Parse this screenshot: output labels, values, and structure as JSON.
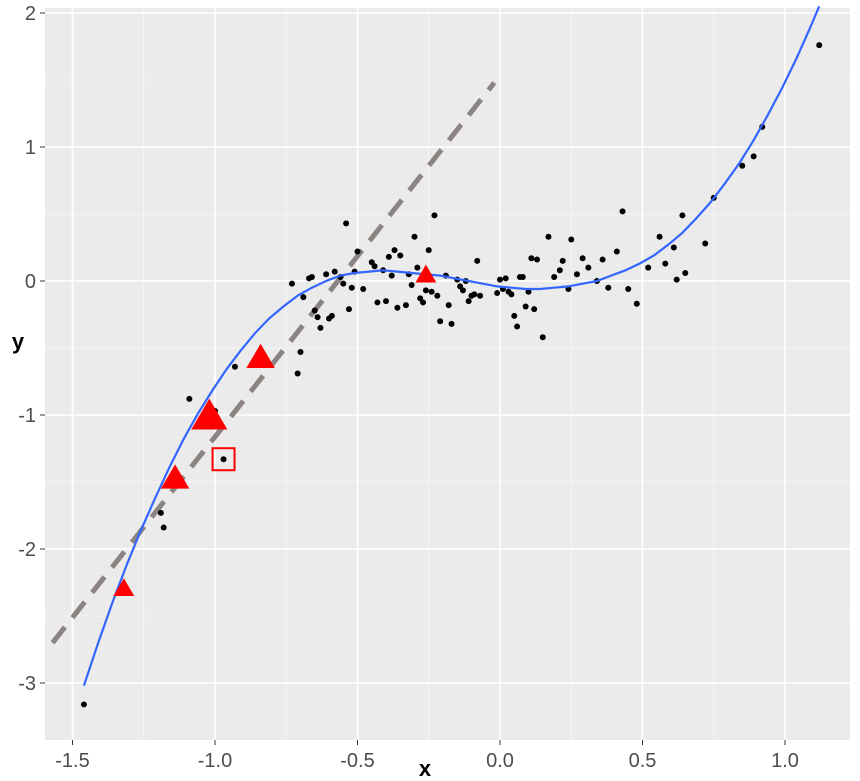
{
  "chart_data": {
    "type": "scatter",
    "xlabel": "x",
    "ylabel": "y",
    "xlim": [
      -1.58,
      1.24
    ],
    "ylim": [
      -3.3,
      2.0
    ],
    "x_ticks": [
      -1.5,
      -1.0,
      -0.5,
      0.0,
      0.5,
      1.0
    ],
    "x_tick_labels": [
      "-1.5",
      "-1.0",
      "-0.5",
      "0.0",
      "0.5",
      "1.0"
    ],
    "y_ticks": [
      -3,
      -2,
      -1,
      0,
      1,
      2
    ],
    "y_tick_labels": [
      "-3",
      "-2",
      "-1",
      "0",
      "1",
      "2"
    ],
    "grid": true,
    "background": "#ebebeb",
    "gridline_color": "#ffffff",
    "points": {
      "color": "#000000",
      "x": [
        -1.46,
        -1.19,
        -1.18,
        -1.09,
        -1.0,
        -0.97,
        -0.93,
        -0.73,
        -0.71,
        -0.7,
        -0.69,
        -0.67,
        -0.66,
        -0.65,
        -0.64,
        -0.63,
        -0.61,
        -0.6,
        -0.59,
        -0.58,
        -0.56,
        -0.55,
        -0.54,
        -0.53,
        -0.52,
        -0.51,
        -0.5,
        -0.48,
        -0.45,
        -0.44,
        -0.43,
        -0.41,
        -0.4,
        -0.39,
        -0.38,
        -0.37,
        -0.36,
        -0.35,
        -0.33,
        -0.32,
        -0.31,
        -0.3,
        -0.29,
        -0.28,
        -0.27,
        -0.26,
        -0.25,
        -0.24,
        -0.23,
        -0.22,
        -0.21,
        -0.19,
        -0.18,
        -0.17,
        -0.15,
        -0.14,
        -0.13,
        -0.12,
        -0.11,
        -0.1,
        -0.09,
        -0.08,
        -0.07,
        -0.01,
        0.0,
        0.01,
        0.02,
        0.03,
        0.04,
        0.05,
        0.06,
        0.07,
        0.08,
        0.09,
        0.1,
        0.11,
        0.12,
        0.13,
        0.15,
        0.17,
        0.19,
        0.21,
        0.22,
        0.24,
        0.25,
        0.27,
        0.29,
        0.31,
        0.34,
        0.36,
        0.38,
        0.41,
        0.43,
        0.45,
        0.48,
        0.52,
        0.56,
        0.58,
        0.61,
        0.62,
        0.64,
        0.65,
        0.72,
        0.75,
        0.85,
        0.89,
        0.92,
        1.12
      ],
      "y": [
        -3.16,
        -1.73,
        -1.84,
        -0.88,
        -0.97,
        -1.33,
        -0.64,
        -0.02,
        -0.69,
        -0.53,
        -0.12,
        0.02,
        0.03,
        -0.22,
        -0.27,
        -0.35,
        0.05,
        -0.28,
        -0.26,
        0.07,
        0.03,
        -0.02,
        0.43,
        -0.21,
        -0.05,
        0.07,
        0.22,
        -0.06,
        0.14,
        0.11,
        -0.16,
        0.08,
        -0.15,
        0.18,
        0.04,
        0.23,
        -0.2,
        0.19,
        -0.18,
        0.05,
        -0.03,
        0.33,
        0.1,
        -0.13,
        -0.16,
        -0.07,
        0.23,
        -0.08,
        0.49,
        -0.11,
        -0.3,
        0.04,
        -0.18,
        -0.32,
        0.01,
        -0.04,
        -0.07,
        0.0,
        -0.15,
        -0.11,
        -0.1,
        0.15,
        -0.11,
        -0.09,
        0.01,
        -0.06,
        0.02,
        -0.08,
        -0.1,
        -0.26,
        -0.34,
        0.03,
        0.03,
        -0.19,
        -0.08,
        0.17,
        -0.21,
        0.16,
        -0.42,
        0.33,
        0.03,
        0.08,
        0.15,
        -0.06,
        0.31,
        0.05,
        0.17,
        0.1,
        0.0,
        0.16,
        -0.05,
        0.22,
        0.52,
        -0.06,
        -0.17,
        0.1,
        0.33,
        0.13,
        0.25,
        0.01,
        0.49,
        0.06,
        0.28,
        0.62,
        0.86,
        0.93,
        1.15,
        1.76
      ]
    },
    "fitted_curve": {
      "color": "#3366ff",
      "x": [
        -1.46,
        -1.41,
        -1.36,
        -1.31,
        -1.26,
        -1.21,
        -1.16,
        -1.11,
        -1.06,
        -1.01,
        -0.96,
        -0.91,
        -0.86,
        -0.81,
        -0.76,
        -0.71,
        -0.66,
        -0.61,
        -0.56,
        -0.51,
        -0.46,
        -0.41,
        -0.36,
        -0.31,
        -0.26,
        -0.21,
        -0.16,
        -0.11,
        -0.06,
        -0.01,
        0.04,
        0.09,
        0.14,
        0.19,
        0.24,
        0.29,
        0.34,
        0.39,
        0.44,
        0.49,
        0.54,
        0.59,
        0.64,
        0.69,
        0.74,
        0.79,
        0.84,
        0.89,
        0.94,
        0.99,
        1.04,
        1.09,
        1.12
      ],
      "y": [
        -3.02,
        -2.7,
        -2.4,
        -2.12,
        -1.86,
        -1.62,
        -1.39,
        -1.18,
        -0.99,
        -0.82,
        -0.66,
        -0.52,
        -0.39,
        -0.28,
        -0.19,
        -0.11,
        -0.05,
        0.0,
        0.04,
        0.06,
        0.07,
        0.08,
        0.07,
        0.06,
        0.05,
        0.04,
        0.02,
        0.0,
        -0.02,
        -0.04,
        -0.05,
        -0.06,
        -0.06,
        -0.05,
        -0.04,
        -0.02,
        0.0,
        0.04,
        0.08,
        0.13,
        0.19,
        0.27,
        0.36,
        0.47,
        0.59,
        0.73,
        0.88,
        1.05,
        1.24,
        1.44,
        1.66,
        1.9,
        2.05
      ]
    },
    "tangent_line": {
      "color": "#8c8482",
      "style": "dashed",
      "x": [
        -1.57,
        -0.02
      ],
      "y": [
        -2.7,
        1.48
      ]
    },
    "highlight_triangles": {
      "color": "#ff0000",
      "points": [
        {
          "x": -1.32,
          "y": -2.3,
          "size": "small"
        },
        {
          "x": -1.14,
          "y": -1.48,
          "size": "medium"
        },
        {
          "x": -1.02,
          "y": -1.02,
          "size": "large"
        },
        {
          "x": -0.84,
          "y": -0.58,
          "size": "medium"
        },
        {
          "x": -0.26,
          "y": 0.04,
          "size": "small"
        }
      ]
    },
    "highlight_box": {
      "color": "#ff0000",
      "x": -0.97,
      "y": -1.33
    }
  }
}
